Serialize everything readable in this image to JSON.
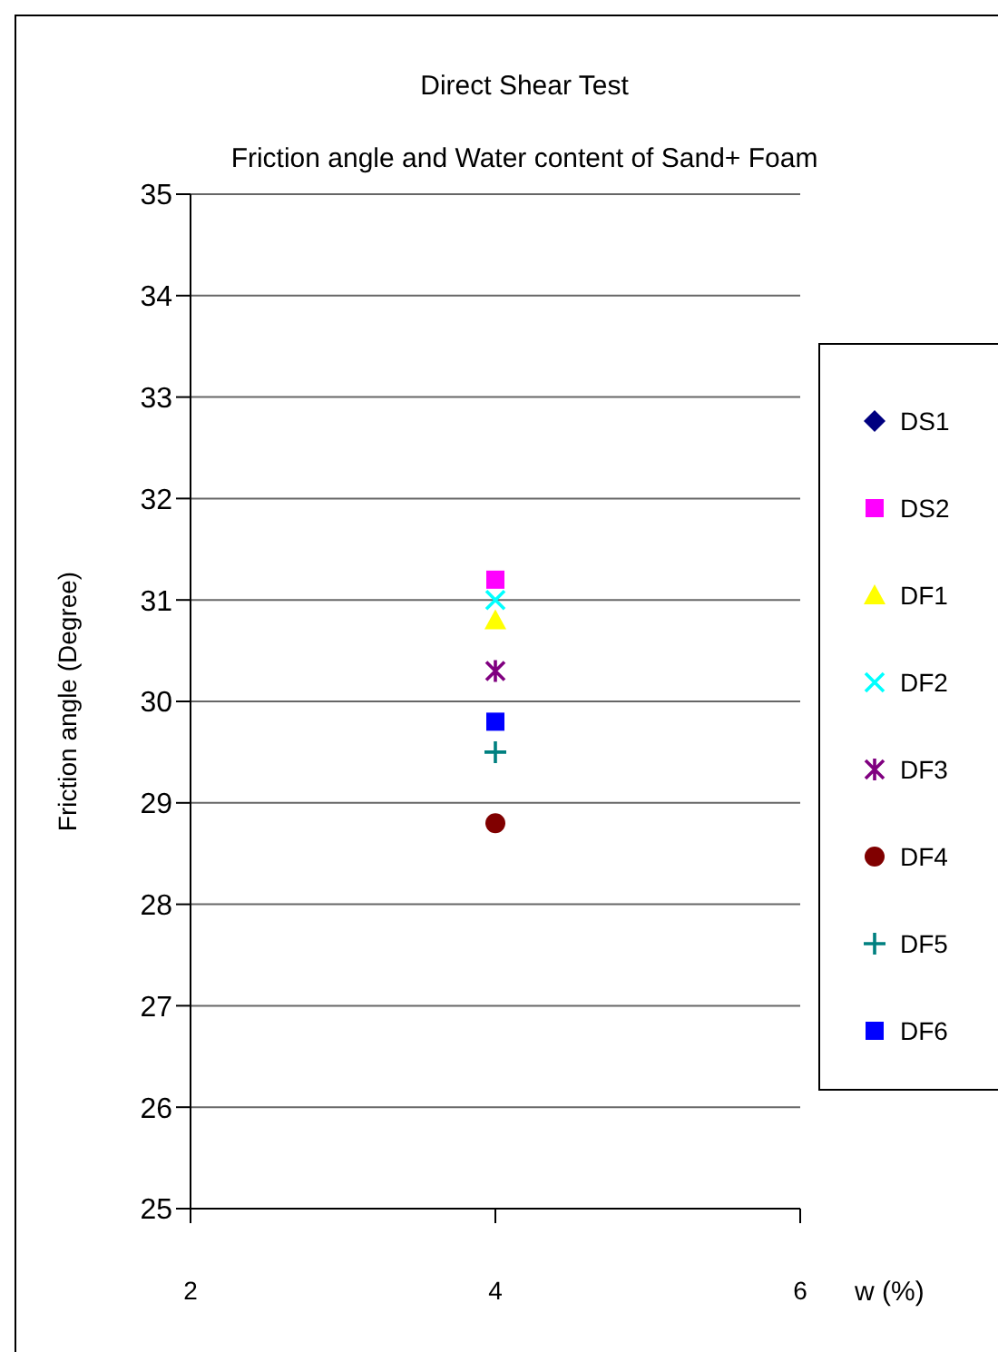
{
  "chart_data": {
    "type": "scatter",
    "title": "Direct Shear Test",
    "subtitle": "Friction angle and Water content of Sand+ Foam",
    "xlabel": "w (%)",
    "ylabel": "Friction angle (Degree)",
    "x": [
      4
    ],
    "xlim": [
      2,
      6
    ],
    "xticks": [
      2,
      4,
      6
    ],
    "ylim": [
      25,
      35
    ],
    "yticks": [
      25,
      26,
      27,
      28,
      29,
      30,
      31,
      32,
      33,
      34,
      35
    ],
    "grid": "y",
    "legend": "right",
    "series": [
      {
        "name": "DS1",
        "color": "#000080",
        "marker": "diamond",
        "values": [
          null
        ]
      },
      {
        "name": "DS2",
        "color": "#ff00ff",
        "marker": "square",
        "values": [
          31.2
        ]
      },
      {
        "name": "DF1",
        "color": "#ffff00",
        "marker": "triangle",
        "values": [
          30.8
        ]
      },
      {
        "name": "DF2",
        "color": "#00ffff",
        "marker": "cross",
        "values": [
          31.0
        ]
      },
      {
        "name": "DF3",
        "color": "#800080",
        "values": [
          30.3
        ]
      },
      {
        "name": "DF4",
        "color": "#800000",
        "marker": "circle",
        "values": [
          28.8
        ]
      },
      {
        "name": "DF5",
        "color": "#008080",
        "marker": "plus",
        "values": [
          29.5
        ]
      },
      {
        "name": "DF6",
        "color": "#0000ff",
        "marker": "square",
        "values": [
          29.8
        ]
      }
    ]
  }
}
